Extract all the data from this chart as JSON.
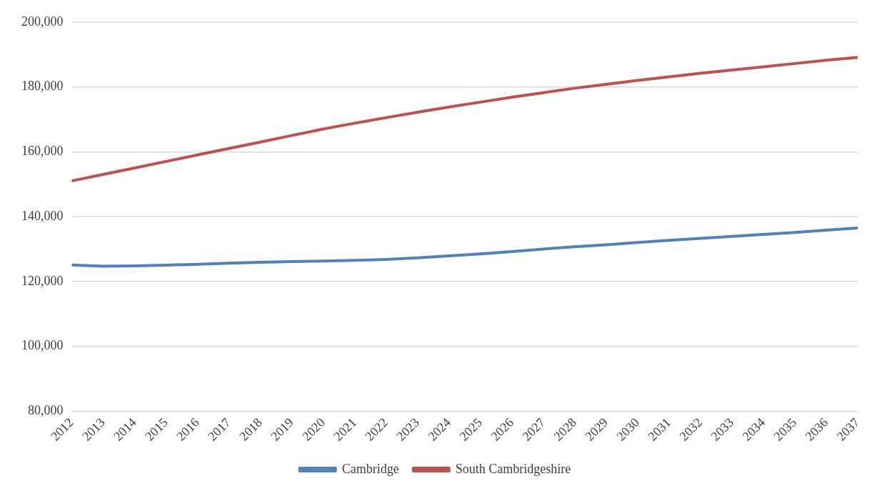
{
  "chart_data": {
    "type": "line",
    "categories": [
      "2012",
      "2013",
      "2014",
      "2015",
      "2016",
      "2017",
      "2018",
      "2019",
      "2020",
      "2021",
      "2022",
      "2023",
      "2024",
      "2025",
      "2026",
      "2027",
      "2028",
      "2029",
      "2030",
      "2031",
      "2032",
      "2033",
      "2034",
      "2035",
      "2036",
      "2037"
    ],
    "series": [
      {
        "name": "Cambridge",
        "color": "#4f81bd",
        "values": [
          125100,
          124700,
          124800,
          125000,
          125300,
          125600,
          125900,
          126100,
          126300,
          126500,
          126800,
          127300,
          127900,
          128500,
          129200,
          130000,
          130700,
          131300,
          132000,
          132700,
          133300,
          133900,
          134500,
          135100,
          135800,
          136500
        ]
      },
      {
        "name": "South Cambridgeshire",
        "color": "#c0504d",
        "values": [
          151000,
          153000,
          155000,
          157000,
          159000,
          161000,
          163000,
          165000,
          167000,
          168800,
          170500,
          172200,
          173800,
          175300,
          176800,
          178200,
          179600,
          180800,
          182000,
          183100,
          184200,
          185200,
          186200,
          187200,
          188200,
          189100
        ]
      }
    ],
    "ylim": [
      80000,
      200000
    ],
    "yticks": [
      {
        "value": 80000,
        "label": "80,000"
      },
      {
        "value": 100000,
        "label": "100,000"
      },
      {
        "value": 120000,
        "label": "120,000"
      },
      {
        "value": 140000,
        "label": "140,000"
      },
      {
        "value": 160000,
        "label": "160,000"
      },
      {
        "value": 180000,
        "label": "180,000"
      },
      {
        "value": 200000,
        "label": "200,000"
      }
    ],
    "grid": "y",
    "legend": "bottom",
    "marker": "none",
    "line_style": "solid"
  }
}
